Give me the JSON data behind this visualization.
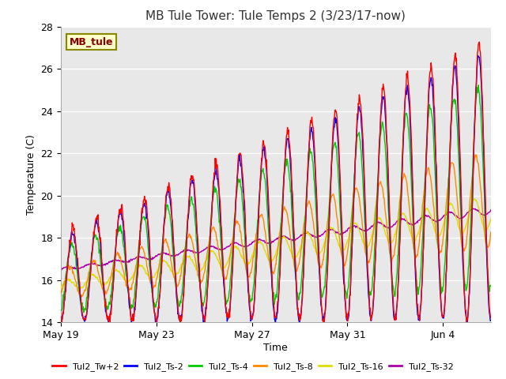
{
  "title": "MB Tule Tower: Tule Temps 2 (3/23/17-now)",
  "xlabel": "Time",
  "ylabel": "Temperature (C)",
  "ylim": [
    14,
    28
  ],
  "yticks": [
    14,
    16,
    18,
    20,
    22,
    24,
    26,
    28
  ],
  "x_tick_labels": [
    "May 19",
    "May 23",
    "May 27",
    "May 31",
    "Jun 4"
  ],
  "x_tick_positions": [
    0,
    4,
    8,
    12,
    16
  ],
  "n_days": 18,
  "background_color": "#ffffff",
  "plot_bg_color": "#e8e8e8",
  "grid_color": "#ffffff",
  "series": [
    {
      "name": "Tul2_Tw+2",
      "color": "#ff0000"
    },
    {
      "name": "Tul2_Ts-2",
      "color": "#0000ff"
    },
    {
      "name": "Tul2_Ts-4",
      "color": "#00cc00"
    },
    {
      "name": "Tul2_Ts-8",
      "color": "#ff8800"
    },
    {
      "name": "Tul2_Ts-16",
      "color": "#dddd00"
    },
    {
      "name": "Tul2_Ts-32",
      "color": "#aa00aa"
    }
  ],
  "label_box": {
    "text": "MB_tule",
    "facecolor": "#ffffcc",
    "edgecolor": "#888800",
    "textcolor": "#880000"
  },
  "title_fontsize": 11,
  "label_fontsize": 9,
  "tick_fontsize": 9
}
